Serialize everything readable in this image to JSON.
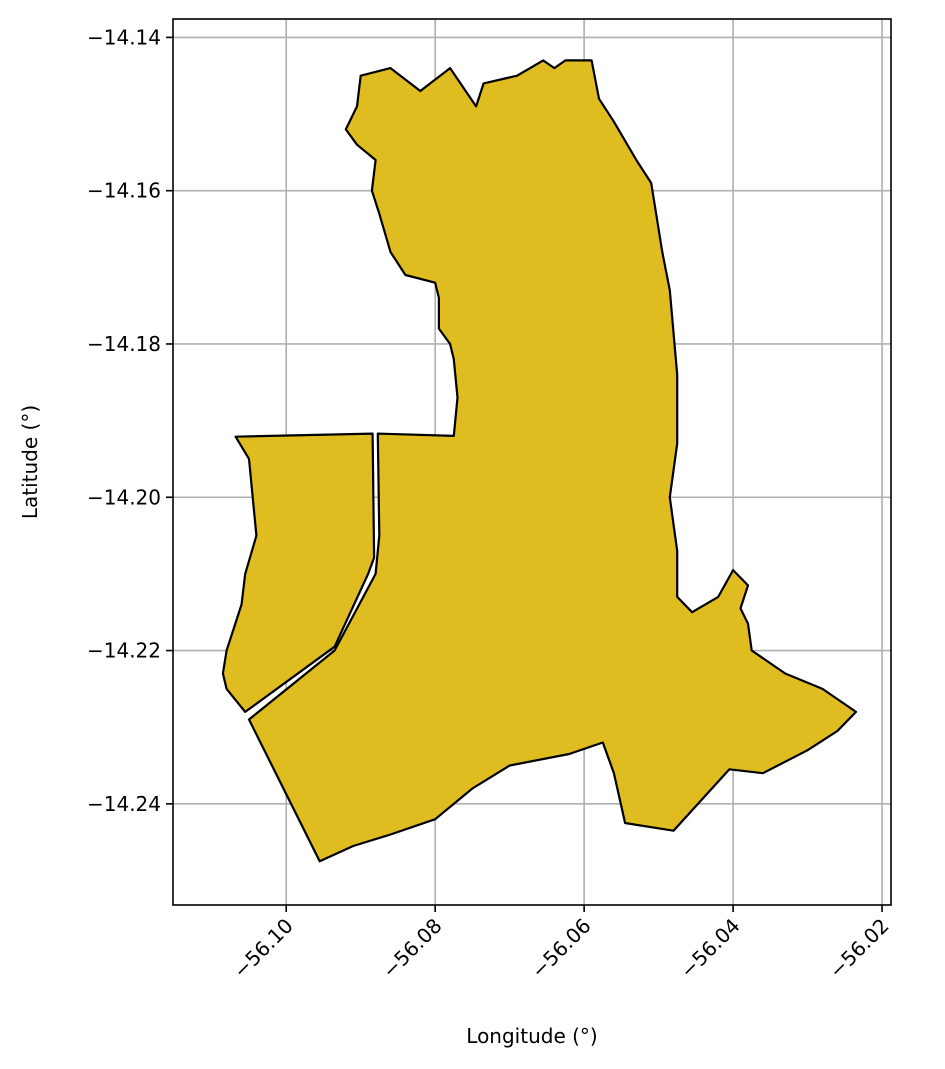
{
  "chart_data": {
    "type": "map",
    "xlabel": "Longitude (°)",
    "ylabel": "Latitude (°)",
    "xlim": [
      -56.1152,
      -56.0188
    ],
    "ylim": [
      -14.2532,
      -14.1376
    ],
    "xticks": [
      -56.1,
      -56.08,
      -56.06,
      -56.04,
      -56.02
    ],
    "xtick_labels": [
      "−56.10",
      "−56.08",
      "−56.06",
      "−56.04",
      "−56.02"
    ],
    "yticks": [
      -14.14,
      -14.16,
      -14.18,
      -14.2,
      -14.22,
      -14.24
    ],
    "ytick_labels": [
      "−14.14",
      "−14.16",
      "−14.18",
      "−14.20",
      "−14.22",
      "−14.24"
    ],
    "grid": true,
    "fill_color": "#DFBD20",
    "edge_color": "#000000",
    "regions": [
      {
        "id": "west-strip",
        "coords": [
          [
            -56.1068,
            -14.1921
          ],
          [
            -56.0884,
            -14.1917
          ],
          [
            -56.0882,
            -14.2079
          ],
          [
            -56.089,
            -14.21
          ],
          [
            -56.0935,
            -14.2195
          ],
          [
            -56.1055,
            -14.228
          ],
          [
            -56.108,
            -14.225
          ],
          [
            -56.1085,
            -14.223
          ],
          [
            -56.108,
            -14.22
          ],
          [
            -56.106,
            -14.214
          ],
          [
            -56.1055,
            -14.21
          ],
          [
            -56.104,
            -14.205
          ],
          [
            -56.1045,
            -14.2
          ],
          [
            -56.105,
            -14.195
          ]
        ]
      },
      {
        "id": "main-district",
        "coords": [
          [
            -56.0877,
            -14.1917
          ],
          [
            -56.0775,
            -14.192
          ],
          [
            -56.077,
            -14.187
          ],
          [
            -56.0775,
            -14.182
          ],
          [
            -56.078,
            -14.18
          ],
          [
            -56.0795,
            -14.178
          ],
          [
            -56.0795,
            -14.174
          ],
          [
            -56.08,
            -14.172
          ],
          [
            -56.084,
            -14.171
          ],
          [
            -56.086,
            -14.168
          ],
          [
            -56.0875,
            -14.163
          ],
          [
            -56.0885,
            -14.16
          ],
          [
            -56.088,
            -14.156
          ],
          [
            -56.0905,
            -14.154
          ],
          [
            -56.092,
            -14.152
          ],
          [
            -56.0905,
            -14.149
          ],
          [
            -56.09,
            -14.145
          ],
          [
            -56.086,
            -14.144
          ],
          [
            -56.082,
            -14.147
          ],
          [
            -56.078,
            -14.144
          ],
          [
            -56.0745,
            -14.149
          ],
          [
            -56.0735,
            -14.146
          ],
          [
            -56.069,
            -14.145
          ],
          [
            -56.0655,
            -14.143
          ],
          [
            -56.064,
            -14.144
          ],
          [
            -56.0625,
            -14.143
          ],
          [
            -56.059,
            -14.143
          ],
          [
            -56.058,
            -14.148
          ],
          [
            -56.056,
            -14.151
          ],
          [
            -56.053,
            -14.156
          ],
          [
            -56.051,
            -14.159
          ],
          [
            -56.0505,
            -14.162
          ],
          [
            -56.0495,
            -14.168
          ],
          [
            -56.0485,
            -14.173
          ],
          [
            -56.0475,
            -14.184
          ],
          [
            -56.0475,
            -14.193
          ],
          [
            -56.0485,
            -14.2
          ],
          [
            -56.0475,
            -14.207
          ],
          [
            -56.0475,
            -14.213
          ],
          [
            -56.0455,
            -14.215
          ],
          [
            -56.042,
            -14.213
          ],
          [
            -56.04,
            -14.2095
          ],
          [
            -56.038,
            -14.2115
          ],
          [
            -56.039,
            -14.2145
          ],
          [
            -56.038,
            -14.2165
          ],
          [
            -56.0375,
            -14.22
          ],
          [
            -56.033,
            -14.223
          ],
          [
            -56.028,
            -14.225
          ],
          [
            -56.0235,
            -14.228
          ],
          [
            -56.026,
            -14.2305
          ],
          [
            -56.03,
            -14.233
          ],
          [
            -56.036,
            -14.236
          ],
          [
            -56.0405,
            -14.2355
          ],
          [
            -56.048,
            -14.2435
          ],
          [
            -56.0545,
            -14.2425
          ],
          [
            -56.056,
            -14.236
          ],
          [
            -56.0575,
            -14.232
          ],
          [
            -56.062,
            -14.2335
          ],
          [
            -56.07,
            -14.235
          ],
          [
            -56.075,
            -14.238
          ],
          [
            -56.08,
            -14.242
          ],
          [
            -56.086,
            -14.244
          ],
          [
            -56.091,
            -14.2455
          ],
          [
            -56.0955,
            -14.2475
          ],
          [
            -56.105,
            -14.229
          ],
          [
            -56.0935,
            -14.22
          ],
          [
            -56.088,
            -14.21
          ],
          [
            -56.0875,
            -14.205
          ]
        ]
      }
    ]
  }
}
